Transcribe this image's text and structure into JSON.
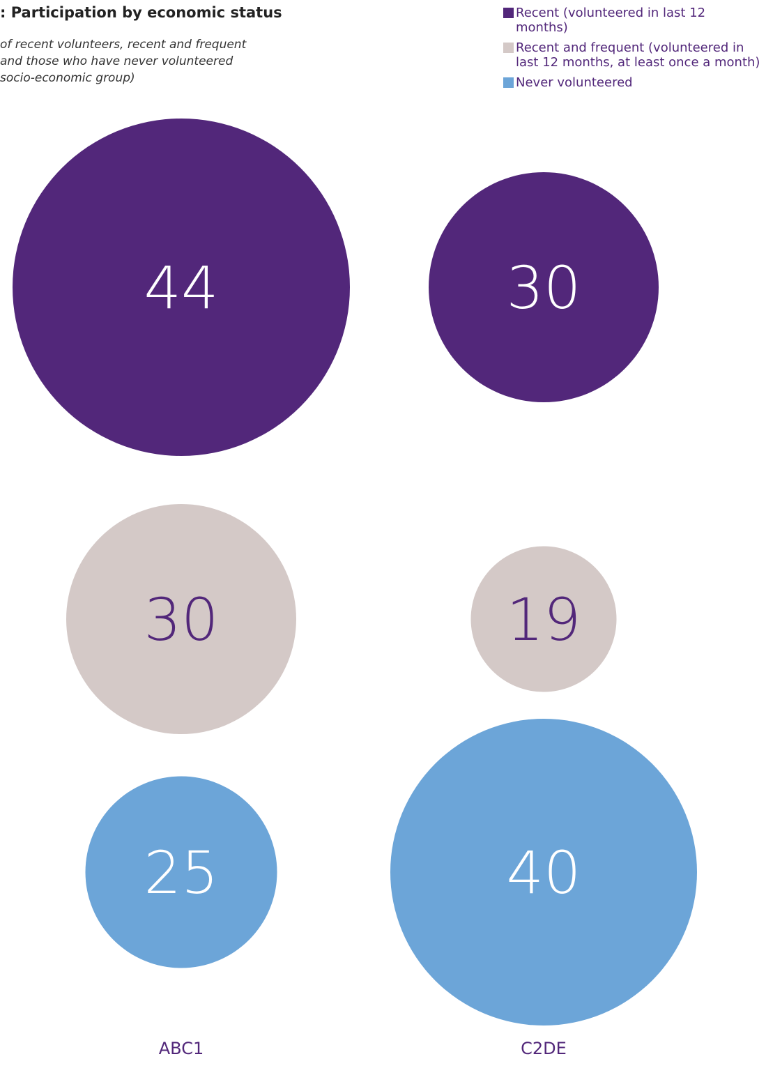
{
  "chart_data": {
    "type": "bubble",
    "title": ": Participation by economic status",
    "subtitle": [
      "of recent volunteers, recent and frequent",
      "and those who have never volunteered",
      "socio-economic group)"
    ],
    "categories": [
      "ABC1",
      "C2DE"
    ],
    "series": [
      {
        "name": "Recent (volunteered in last 12 months)",
        "color": "#52277a",
        "label_color": "#ffffff",
        "values": [
          44,
          30
        ]
      },
      {
        "name": "Recent and frequent (volunteered in last 12 months, at least once a month)",
        "color": "#d4c9c7",
        "label_color": "#52277a",
        "values": [
          30,
          19
        ]
      },
      {
        "name": "Never volunteered",
        "color": "#6ca5d8",
        "label_color": "#ffffff",
        "values": [
          25,
          40
        ]
      }
    ]
  }
}
